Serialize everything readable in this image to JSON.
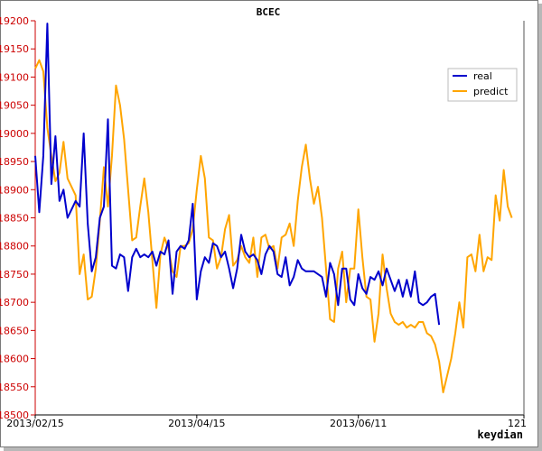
{
  "chart_data": {
    "type": "line",
    "title": "BCEC",
    "xlabel": "keydian",
    "ylabel": "",
    "ylim": [
      18500,
      19200
    ],
    "yticks": [
      18500,
      18550,
      18600,
      18650,
      18700,
      18750,
      18800,
      18850,
      18900,
      18950,
      19000,
      19050,
      19100,
      19150,
      19200
    ],
    "xlim": [
      0,
      121
    ],
    "xticks": [
      {
        "x": 0,
        "label": "2013/02/15"
      },
      {
        "x": 40,
        "label": "2013/04/15"
      },
      {
        "x": 80,
        "label": "2013/06/11"
      },
      {
        "x": 121,
        "label": "121"
      }
    ],
    "grid": false,
    "legend_position": "top-right",
    "series": [
      {
        "name": "real",
        "color": "#0000cc",
        "values": [
          18960,
          18860,
          18960,
          19195,
          18910,
          18995,
          18880,
          18900,
          18850,
          18865,
          18880,
          18870,
          19000,
          18840,
          18755,
          18780,
          18850,
          18870,
          19025,
          18765,
          18760,
          18785,
          18780,
          18720,
          18780,
          18795,
          18780,
          18785,
          18780,
          18790,
          18765,
          18790,
          18785,
          18810,
          18715,
          18790,
          18800,
          18795,
          18810,
          18875,
          18705,
          18755,
          18780,
          18770,
          18805,
          18800,
          18780,
          18790,
          18760,
          18725,
          18760,
          18820,
          18790,
          18780,
          18785,
          18775,
          18750,
          18785,
          18800,
          18790,
          18750,
          18745,
          18780,
          18730,
          18745,
          18775,
          18760,
          18755,
          18755,
          18755,
          18750,
          18745,
          18710,
          18770,
          18750,
          18695,
          18760,
          18760,
          18705,
          18695,
          18750,
          18725,
          18715,
          18745,
          18740,
          18755,
          18730,
          18760,
          18740,
          18720,
          18740,
          18710,
          18740,
          18710,
          18755,
          18700,
          18695,
          18700,
          18710,
          18715,
          18660
        ]
      },
      {
        "name": "predict",
        "color": "#ffa500",
        "values": [
          19115,
          19130,
          19110,
          19010,
          18960,
          18915,
          18930,
          18985,
          18920,
          18905,
          18890,
          18750,
          18785,
          18705,
          18710,
          18760,
          18845,
          18940,
          18870,
          18960,
          19085,
          19050,
          18990,
          18900,
          18810,
          18815,
          18870,
          18920,
          18860,
          18775,
          18690,
          18785,
          18815,
          18795,
          18755,
          18745,
          18800,
          18800,
          18805,
          18830,
          18900,
          18960,
          18920,
          18815,
          18810,
          18760,
          18780,
          18830,
          18855,
          18765,
          18775,
          18800,
          18780,
          18770,
          18815,
          18745,
          18815,
          18820,
          18795,
          18800,
          18760,
          18815,
          18820,
          18840,
          18800,
          18880,
          18940,
          18980,
          18920,
          18875,
          18905,
          18850,
          18760,
          18670,
          18665,
          18760,
          18790,
          18700,
          18760,
          18760,
          18865,
          18780,
          18710,
          18705,
          18630,
          18680,
          18785,
          18725,
          18680,
          18665,
          18660,
          18665,
          18655,
          18660,
          18655,
          18665,
          18665,
          18645,
          18640,
          18625,
          18595,
          18540,
          18570,
          18600,
          18645,
          18700,
          18655,
          18780,
          18785,
          18755,
          18820,
          18755,
          18780,
          18775,
          18890,
          18845,
          18935,
          18870,
          18850
        ]
      }
    ]
  }
}
